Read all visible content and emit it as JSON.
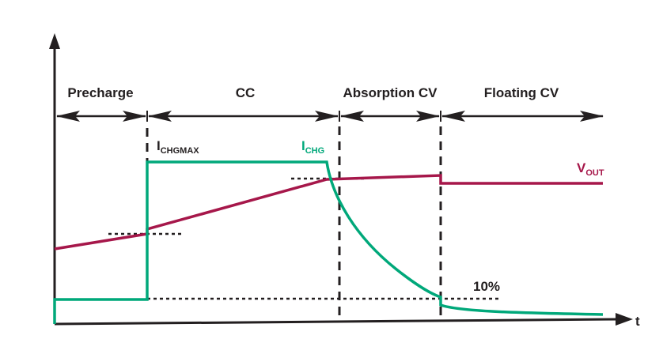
{
  "phases": [
    {
      "label": "Precharge"
    },
    {
      "label": "CC"
    },
    {
      "label": "Absorption CV"
    },
    {
      "label": "Floating CV"
    }
  ],
  "labels": {
    "ichgmax_main": "I",
    "ichgmax_sub": "CHGMAX",
    "ichg_main": "I",
    "ichg_sub": "CHG",
    "vout_main": "V",
    "vout_sub": "OUT",
    "termination": "10%",
    "time_axis": "t"
  },
  "colors": {
    "current": "#00a87a",
    "voltage": "#a6174a",
    "axis": "#231f20"
  }
}
